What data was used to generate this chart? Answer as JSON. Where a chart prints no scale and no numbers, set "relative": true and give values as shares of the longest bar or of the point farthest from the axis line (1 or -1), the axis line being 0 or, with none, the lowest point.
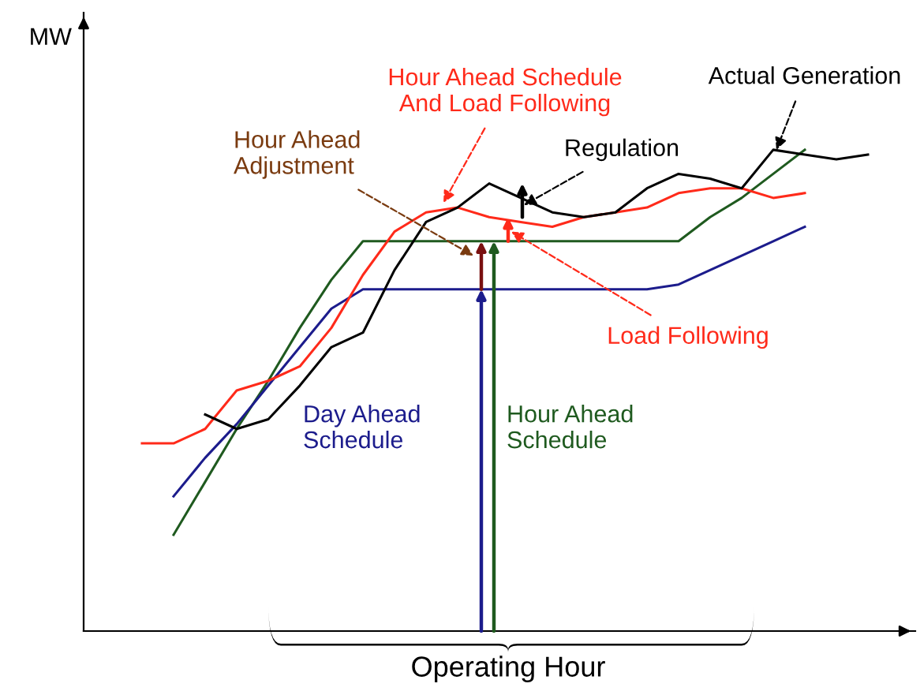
{
  "chart_data": {
    "type": "line",
    "relative": true,
    "ylabel": "MW",
    "xlabel": "Operating Hour",
    "categories": [
      null,
      null,
      null,
      null,
      null,
      null,
      null,
      null,
      null,
      null,
      null,
      null,
      null,
      null,
      null,
      null,
      null,
      null,
      null,
      null,
      null,
      null,
      null,
      null
    ],
    "series": [
      {
        "name": "Hour Ahead\nSchedule",
        "color": "#1f5a1f",
        "values": [
          null,
          0.2,
          0.31,
          0.42,
          0.52,
          0.63,
          0.73,
          0.81,
          0.81,
          0.81,
          0.81,
          0.81,
          0.81,
          0.81,
          0.81,
          0.81,
          0.81,
          0.81,
          0.86,
          0.9,
          0.95,
          1.0,
          null,
          null
        ]
      },
      {
        "name": "Day Ahead\nSchedule",
        "color": "#1c1c8c",
        "values": [
          null,
          0.28,
          0.36,
          0.43,
          0.51,
          0.59,
          0.67,
          0.71,
          0.71,
          0.71,
          0.71,
          0.71,
          0.71,
          0.71,
          0.71,
          0.71,
          0.71,
          0.72,
          0.75,
          0.78,
          0.81,
          0.84,
          null,
          null
        ]
      },
      {
        "name": "Hour Ahead Schedule\nAnd Load Following",
        "color": "#ff2a1a",
        "values": [
          0.39,
          0.39,
          0.42,
          0.5,
          0.52,
          0.55,
          0.63,
          0.74,
          0.83,
          0.87,
          0.88,
          0.86,
          0.85,
          0.84,
          0.86,
          0.87,
          0.88,
          0.91,
          0.92,
          0.92,
          0.9,
          0.91,
          null,
          null
        ]
      },
      {
        "name": "Actual Generation",
        "color": "#000000",
        "values": [
          null,
          null,
          0.45,
          0.42,
          0.44,
          0.51,
          0.59,
          0.62,
          0.75,
          0.85,
          0.88,
          0.93,
          0.9,
          0.87,
          0.86,
          0.87,
          0.92,
          0.95,
          0.94,
          0.92,
          1.0,
          0.99,
          0.98,
          0.99
        ]
      }
    ],
    "annotations": [
      "Hour Ahead\nAdjustment",
      "Regulation",
      "Load Following"
    ]
  }
}
